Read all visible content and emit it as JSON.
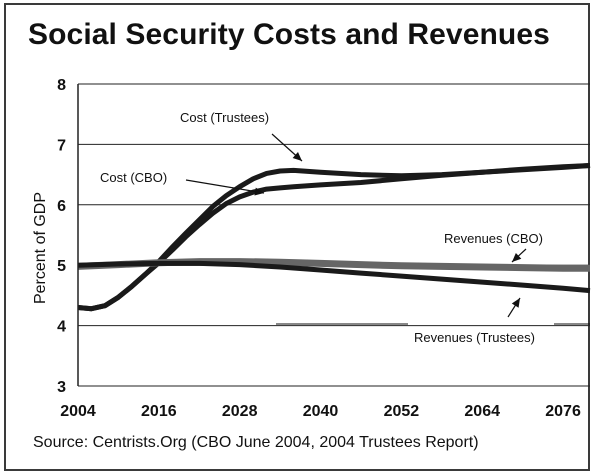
{
  "chart_data": {
    "type": "line",
    "title": "Social Security Costs and Revenues",
    "ylabel": "Percent of GDP",
    "xlabel": "",
    "xlim": [
      2004,
      2080
    ],
    "ylim": [
      3,
      8
    ],
    "x_ticks": [
      "2004",
      "2016",
      "2028",
      "2040",
      "2052",
      "2064",
      "2076"
    ],
    "y_ticks": [
      "3",
      "4",
      "5",
      "6",
      "7",
      "8"
    ],
    "grid": "horizontal",
    "series": [
      {
        "name": "Cost (Trustees)",
        "color": "#1a1a1a",
        "x": [
          2004,
          2006,
          2008,
          2010,
          2012,
          2014,
          2016,
          2018,
          2020,
          2022,
          2024,
          2026,
          2028,
          2030,
          2032,
          2034,
          2036,
          2040,
          2046,
          2052,
          2058,
          2064,
          2070,
          2076,
          2080
        ],
        "values": [
          4.3,
          4.28,
          4.33,
          4.47,
          4.65,
          4.85,
          5.06,
          5.3,
          5.53,
          5.75,
          5.97,
          6.15,
          6.3,
          6.43,
          6.52,
          6.56,
          6.57,
          6.54,
          6.5,
          6.48,
          6.5,
          6.54,
          6.58,
          6.62,
          6.65
        ]
      },
      {
        "name": "Cost (CBO)",
        "color": "#1a1a1a",
        "x": [
          2004,
          2006,
          2008,
          2010,
          2012,
          2014,
          2016,
          2018,
          2020,
          2022,
          2024,
          2026,
          2028,
          2030,
          2032,
          2034,
          2036,
          2040,
          2046,
          2052,
          2058,
          2064,
          2070,
          2076,
          2080
        ],
        "values": [
          4.3,
          4.28,
          4.33,
          4.47,
          4.65,
          4.85,
          5.04,
          5.25,
          5.47,
          5.67,
          5.86,
          6.02,
          6.13,
          6.21,
          6.26,
          6.28,
          6.3,
          6.33,
          6.37,
          6.43,
          6.49,
          6.54,
          6.59,
          6.63,
          6.65
        ]
      },
      {
        "name": "Revenues (CBO)",
        "color": "#666666",
        "x": [
          2004,
          2010,
          2016,
          2022,
          2028,
          2034,
          2040,
          2046,
          2052,
          2058,
          2064,
          2070,
          2076,
          2080
        ],
        "values": [
          4.98,
          5.01,
          5.04,
          5.06,
          5.06,
          5.05,
          5.03,
          5.01,
          4.99,
          4.98,
          4.97,
          4.96,
          4.95,
          4.95
        ]
      },
      {
        "name": "Revenues (Trustees)",
        "color": "#1a1a1a",
        "x": [
          2004,
          2010,
          2016,
          2022,
          2028,
          2034,
          2040,
          2046,
          2052,
          2058,
          2064,
          2070,
          2076,
          2080
        ],
        "values": [
          5.0,
          5.02,
          5.03,
          5.03,
          5.01,
          4.97,
          4.92,
          4.87,
          4.82,
          4.77,
          4.72,
          4.67,
          4.62,
          4.58
        ]
      }
    ],
    "annotations": [
      "Cost (Trustees)",
      "Cost (CBO)",
      "Revenues (CBO)",
      "Revenues (Trustees)"
    ]
  },
  "source": "Source:  Centrists.Org (CBO June 2004, 2004 Trustees Report)"
}
